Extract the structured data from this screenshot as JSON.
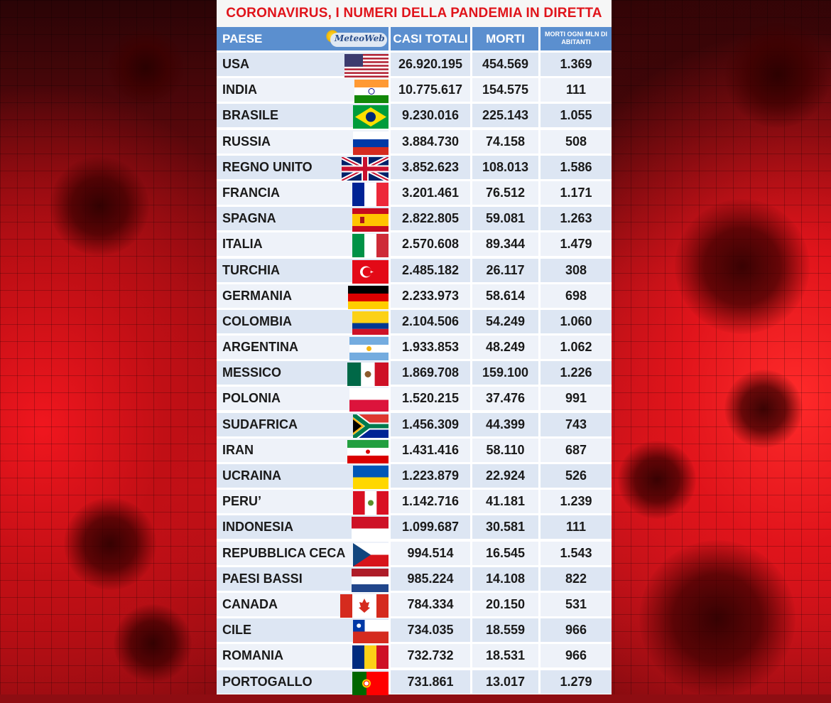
{
  "title": "CORONAVIRUS, I NUMERI DELLA PANDEMIA IN DIRETTA",
  "header": {
    "country": "PAESE",
    "logo_text": "MeteoWeb",
    "cases": "CASI TOTALI",
    "deaths": "MORTI",
    "deaths_per_mln": "MORTI OGNI MLN DI ABITANTI"
  },
  "colors": {
    "title_red": "#e0141b",
    "header_blue": "#5b8fcf",
    "row_light": "#eef2f9",
    "row_dark": "#dde6f3"
  },
  "rows": [
    {
      "country": "USA",
      "flag": "usa-flag-icon",
      "cases": "26.920.195",
      "deaths": "454.569",
      "per_mln": "1.369"
    },
    {
      "country": "INDIA",
      "flag": "india-flag-icon",
      "cases": "10.775.617",
      "deaths": "154.575",
      "per_mln": "111"
    },
    {
      "country": "BRASILE",
      "flag": "brazil-flag-icon",
      "cases": "9.230.016",
      "deaths": "225.143",
      "per_mln": "1.055"
    },
    {
      "country": "RUSSIA",
      "flag": "russia-flag-icon",
      "cases": "3.884.730",
      "deaths": "74.158",
      "per_mln": "508"
    },
    {
      "country": "REGNO UNITO",
      "flag": "uk-flag-icon",
      "cases": "3.852.623",
      "deaths": "108.013",
      "per_mln": "1.586"
    },
    {
      "country": "FRANCIA",
      "flag": "france-flag-icon",
      "cases": "3.201.461",
      "deaths": "76.512",
      "per_mln": "1.171"
    },
    {
      "country": "SPAGNA",
      "flag": "spain-flag-icon",
      "cases": "2.822.805",
      "deaths": "59.081",
      "per_mln": "1.263"
    },
    {
      "country": "ITALIA",
      "flag": "italy-flag-icon",
      "cases": "2.570.608",
      "deaths": "89.344",
      "per_mln": "1.479"
    },
    {
      "country": "TURCHIA",
      "flag": "turkey-flag-icon",
      "cases": "2.485.182",
      "deaths": "26.117",
      "per_mln": "308"
    },
    {
      "country": "GERMANIA",
      "flag": "germany-flag-icon",
      "cases": "2.233.973",
      "deaths": "58.614",
      "per_mln": "698"
    },
    {
      "country": "COLOMBIA",
      "flag": "colombia-flag-icon",
      "cases": "2.104.506",
      "deaths": "54.249",
      "per_mln": "1.060"
    },
    {
      "country": "ARGENTINA",
      "flag": "argentina-flag-icon",
      "cases": "1.933.853",
      "deaths": "48.249",
      "per_mln": "1.062"
    },
    {
      "country": "MESSICO",
      "flag": "mexico-flag-icon",
      "cases": "1.869.708",
      "deaths": "159.100",
      "per_mln": "1.226"
    },
    {
      "country": "POLONIA",
      "flag": "poland-flag-icon",
      "cases": "1.520.215",
      "deaths": "37.476",
      "per_mln": "991"
    },
    {
      "country": "SUDAFRICA",
      "flag": "south-africa-flag-icon",
      "cases": "1.456.309",
      "deaths": "44.399",
      "per_mln": "743"
    },
    {
      "country": "IRAN",
      "flag": "iran-flag-icon",
      "cases": "1.431.416",
      "deaths": "58.110",
      "per_mln": "687"
    },
    {
      "country": "UCRAINA",
      "flag": "ukraine-flag-icon",
      "cases": "1.223.879",
      "deaths": "22.924",
      "per_mln": "526"
    },
    {
      "country": "PERU’",
      "flag": "peru-flag-icon",
      "cases": "1.142.716",
      "deaths": "41.181",
      "per_mln": "1.239"
    },
    {
      "country": "INDONESIA",
      "flag": "indonesia-flag-icon",
      "cases": "1.099.687",
      "deaths": "30.581",
      "per_mln": "111"
    },
    {
      "country": "REPUBBLICA CECA",
      "flag": "czech-flag-icon",
      "cases": "994.514",
      "deaths": "16.545",
      "per_mln": "1.543"
    },
    {
      "country": "PAESI BASSI",
      "flag": "netherlands-flag-icon",
      "cases": "985.224",
      "deaths": "14.108",
      "per_mln": "822"
    },
    {
      "country": "CANADA",
      "flag": "canada-flag-icon",
      "cases": "784.334",
      "deaths": "20.150",
      "per_mln": "531"
    },
    {
      "country": "CILE",
      "flag": "chile-flag-icon",
      "cases": "734.035",
      "deaths": "18.559",
      "per_mln": "966"
    },
    {
      "country": "ROMANIA",
      "flag": "romania-flag-icon",
      "cases": "732.732",
      "deaths": "18.531",
      "per_mln": "966"
    },
    {
      "country": "PORTOGALLO",
      "flag": "portugal-flag-icon",
      "cases": "731.861",
      "deaths": "13.017",
      "per_mln": "1.279"
    }
  ]
}
